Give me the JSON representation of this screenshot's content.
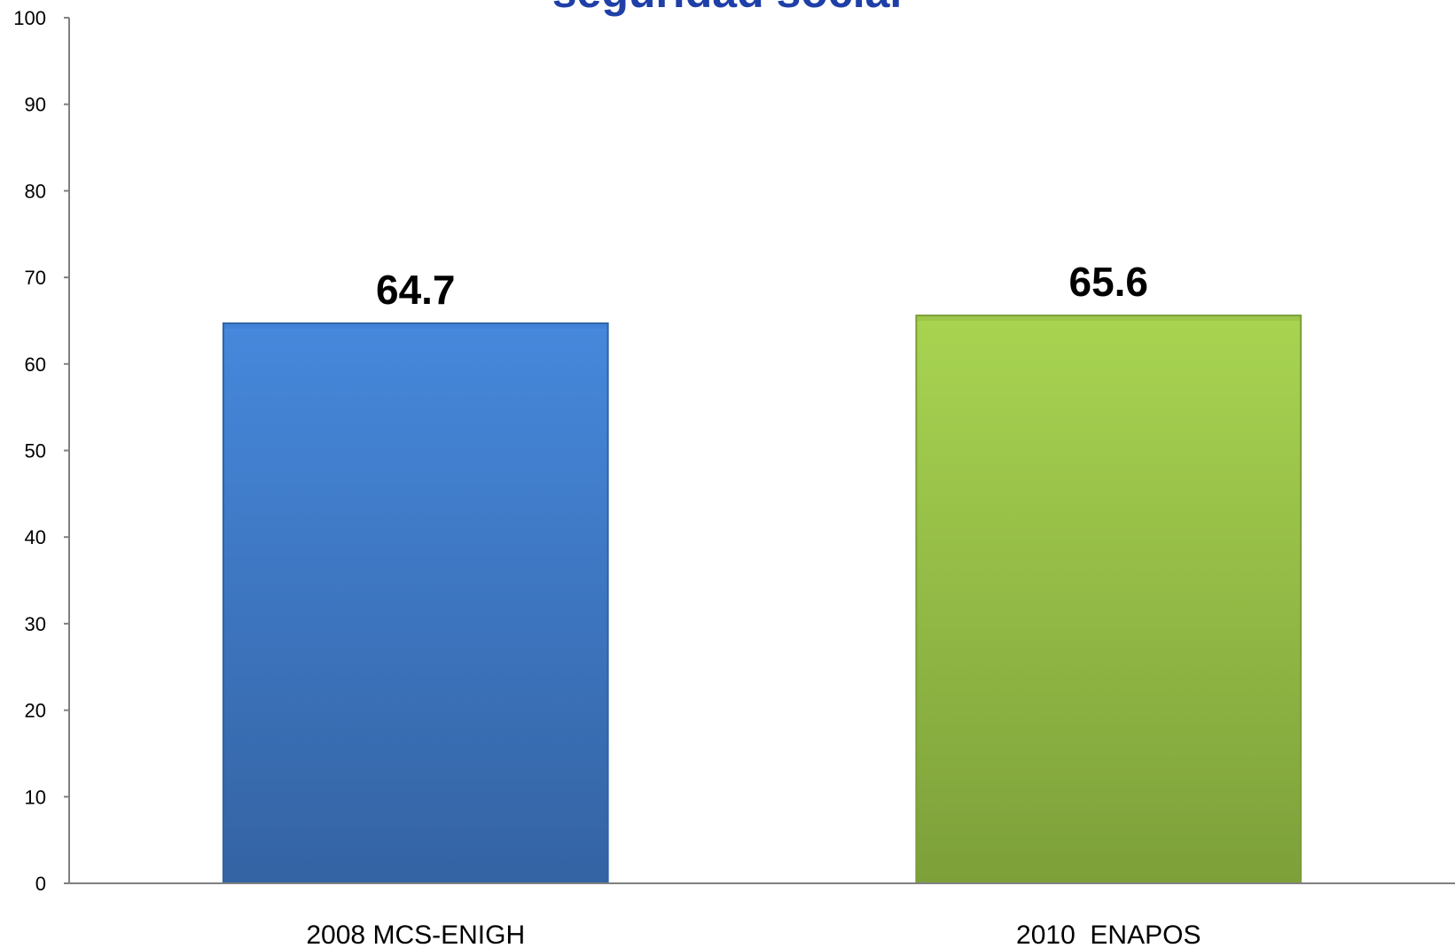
{
  "chart_data": {
    "type": "bar",
    "title": "seguridad social",
    "xlabel": "",
    "ylabel": "",
    "categories": [
      "2008 MCS-ENIGH",
      "2010  ENAPOS"
    ],
    "values": [
      64.7,
      65.6
    ],
    "data_labels": [
      "64.7",
      "65.6"
    ],
    "ylim": [
      0,
      100
    ],
    "yticks": [
      0,
      10,
      20,
      30,
      40,
      50,
      60,
      70,
      80,
      90,
      100
    ],
    "grid": false,
    "legend": "none",
    "colors": {
      "bars": [
        "#3f82d6",
        "#9cc44a"
      ],
      "bars_dark": [
        "#2f62a3",
        "#7a9e38"
      ],
      "title": "#1f3fa8",
      "axis": "#808080"
    }
  }
}
